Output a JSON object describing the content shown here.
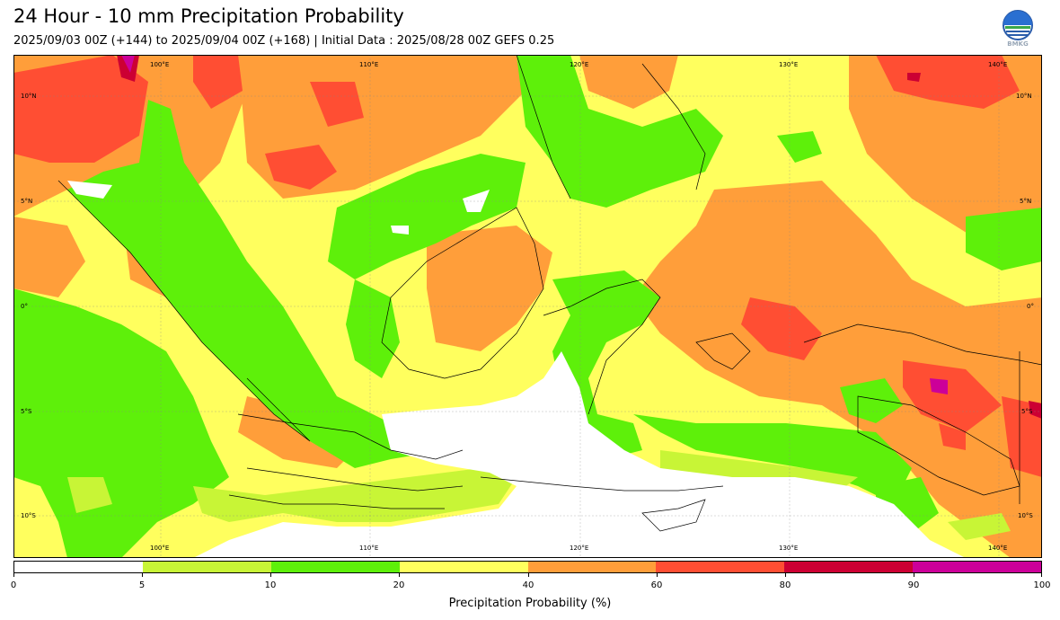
{
  "header": {
    "title": "24 Hour - 10 mm Precipitation Probability",
    "subtitle": "2025/09/03 00Z (+144) to 2025/09/04 00Z (+168) | Initial Data : 2025/08/28 00Z GEFS 0.25"
  },
  "logo": {
    "text": "BMKG",
    "icon": "bmkg-logo"
  },
  "map": {
    "region": "Indonesia",
    "lon_labels": [
      "100°E",
      "110°E",
      "120°E",
      "130°E",
      "140°E"
    ],
    "lat_labels": [
      "10°N",
      "5°N",
      "0°",
      "5°S",
      "10°S"
    ],
    "colors": {
      "c0_5": "#ffffff",
      "c5_10": "#c8f536",
      "c10_20": "#5ef00a",
      "c20_40": "#ffff5e",
      "c40_60": "#ff9e3a",
      "c60_80": "#ff4e33",
      "c80_90": "#cc0033",
      "c90_100": "#cc0099"
    }
  },
  "colorbar": {
    "ticks": [
      "0",
      "5",
      "10",
      "20",
      "40",
      "60",
      "80",
      "90",
      "100"
    ],
    "colors": [
      "#ffffff",
      "#c8f536",
      "#5ef00a",
      "#ffff5e",
      "#ff9e3a",
      "#ff4e33",
      "#cc0033",
      "#cc0099"
    ],
    "label": "Precipitation Probability (%)"
  }
}
